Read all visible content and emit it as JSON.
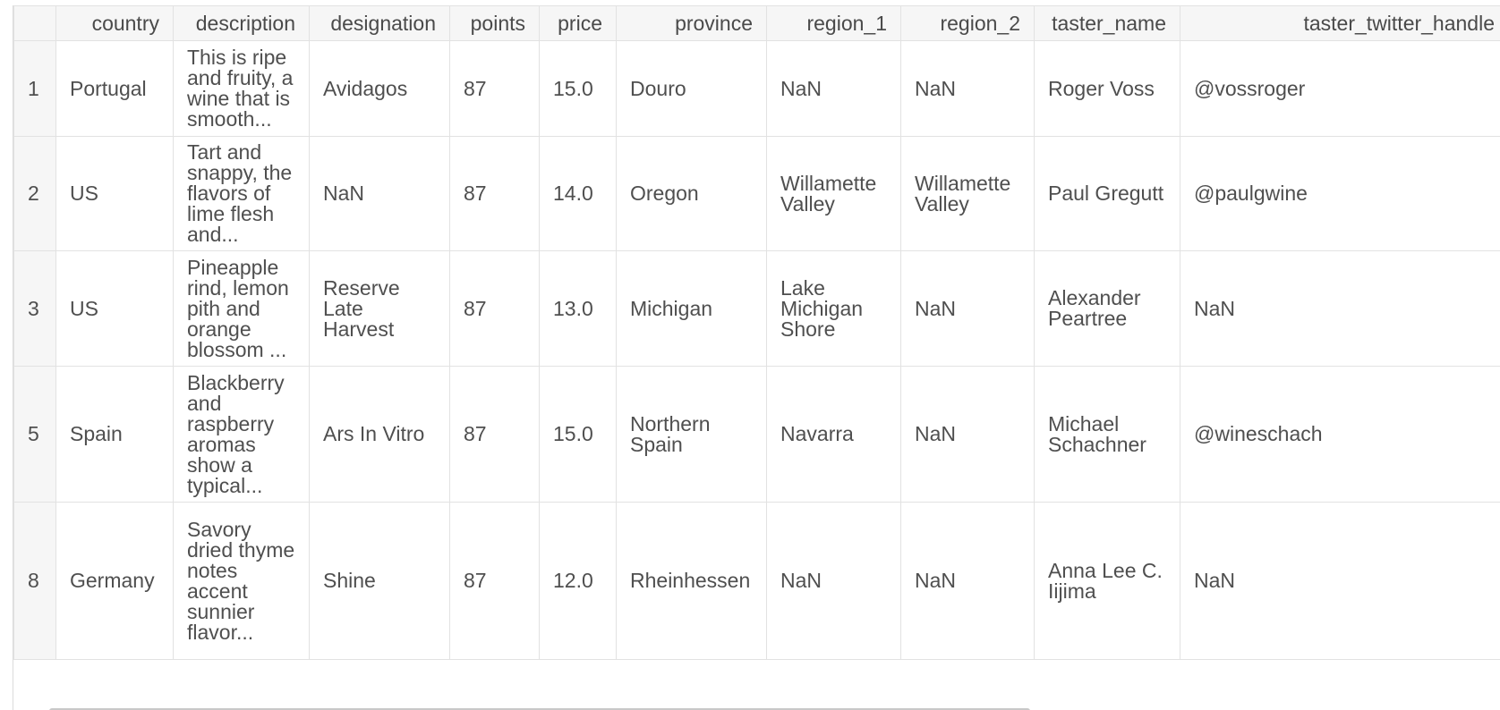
{
  "columns": [
    {
      "key": "index",
      "label": ""
    },
    {
      "key": "country",
      "label": "country"
    },
    {
      "key": "description",
      "label": "description"
    },
    {
      "key": "designation",
      "label": "designation"
    },
    {
      "key": "points",
      "label": "points"
    },
    {
      "key": "price",
      "label": "price"
    },
    {
      "key": "province",
      "label": "province"
    },
    {
      "key": "region_1",
      "label": "region_1"
    },
    {
      "key": "region_2",
      "label": "region_2"
    },
    {
      "key": "taster_name",
      "label": "taster_name"
    },
    {
      "key": "taster_twitter_handle",
      "label": "taster_twitter_handle"
    }
  ],
  "rows": [
    {
      "index": "1",
      "country": "Portugal",
      "description": "This is ripe and fruity, a wine that is smooth...",
      "designation": "Avidagos",
      "points": "87",
      "price": "15.0",
      "province": "Douro",
      "region_1": "NaN",
      "region_2": "NaN",
      "taster_name": "Roger Voss",
      "taster_twitter_handle": "@vossroger"
    },
    {
      "index": "2",
      "country": "US",
      "description": "Tart and snappy, the flavors of lime flesh and...",
      "designation": "NaN",
      "points": "87",
      "price": "14.0",
      "province": "Oregon",
      "region_1": "Willamette Valley",
      "region_2": "Willamette Valley",
      "taster_name": "Paul Gregutt",
      "taster_twitter_handle": "@paulgwine"
    },
    {
      "index": "3",
      "country": "US",
      "description": "Pineapple rind, lemon pith and orange blossom ...",
      "designation": "Reserve Late Harvest",
      "points": "87",
      "price": "13.0",
      "province": "Michigan",
      "region_1": "Lake Michigan Shore",
      "region_2": "NaN",
      "taster_name": "Alexander Peartree",
      "taster_twitter_handle": "NaN"
    },
    {
      "index": "5",
      "country": "Spain",
      "description": "Blackberry and raspberry aromas show a typical...",
      "designation": "Ars In Vitro",
      "points": "87",
      "price": "15.0",
      "province": "Northern Spain",
      "region_1": "Navarra",
      "region_2": "NaN",
      "taster_name": "Michael Schachner",
      "taster_twitter_handle": "@wineschach"
    },
    {
      "index": "8",
      "country": "Germany",
      "description": "Savory dried thyme notes accent sunnier flavor...",
      "designation": "Shine",
      "points": "87",
      "price": "12.0",
      "province": "Rheinhessen",
      "region_1": "NaN",
      "region_2": "NaN",
      "taster_name": "Anna Lee C. Iijima",
      "taster_twitter_handle": "NaN"
    }
  ]
}
